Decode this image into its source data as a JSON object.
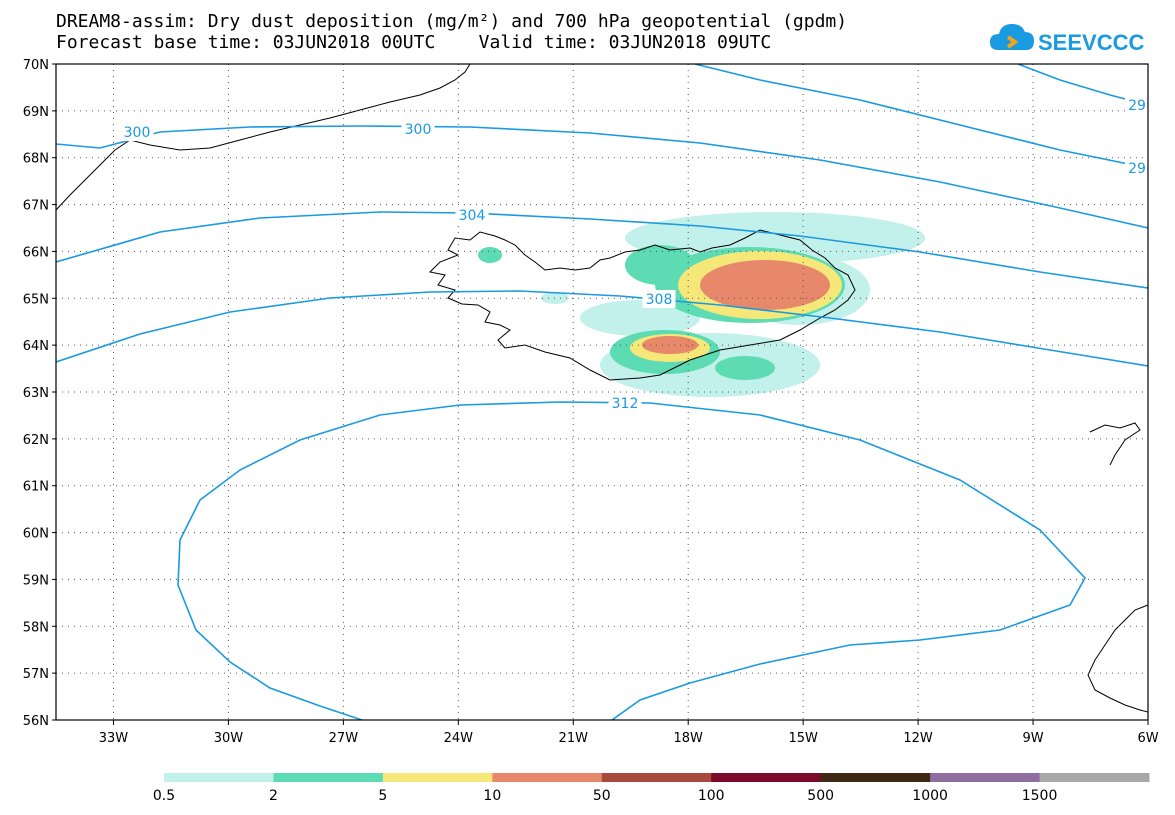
{
  "header": {
    "title_line1": "DREAM8-assim: Dry dust deposition (mg/m²) and 700 hPa geopotential (gpdm)",
    "title_line2": "Forecast base time: 03JUN2018 00UTC    Valid time: 03JUN2018 09UTC",
    "logo_text": "SEEVCCC"
  },
  "map": {
    "lon_range": [
      -34.5,
      -6
    ],
    "lat_range": [
      56,
      70
    ],
    "lon_ticks": [
      "33W",
      "30W",
      "27W",
      "24W",
      "21W",
      "18W",
      "15W",
      "12W",
      "9W",
      "6W"
    ],
    "lat_ticks": [
      "56N",
      "57N",
      "58N",
      "59N",
      "60N",
      "61N",
      "62N",
      "63N",
      "64N",
      "65N",
      "66N",
      "67N",
      "68N",
      "69N",
      "70N"
    ],
    "gridlines": "dotted",
    "contour_color": "#1a9ae0",
    "contour_labels": [
      "300",
      "300",
      "304",
      "308",
      "312",
      "29",
      "29"
    ]
  },
  "legend": {
    "colors": [
      "#c2f0ea",
      "#5ddbb3",
      "#f5e878",
      "#e8886a",
      "#a84b3e",
      "#7a0a2a",
      "#3e2a14",
      "#8f6ea2",
      "#a8a8a8"
    ],
    "labels": [
      "0.5",
      "2",
      "5",
      "10",
      "50",
      "100",
      "500",
      "1000",
      "1500"
    ]
  }
}
